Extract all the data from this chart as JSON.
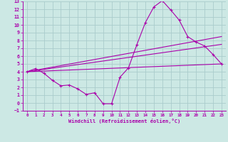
{
  "background_color": "#cce8e4",
  "grid_color": "#aacccc",
  "line_color": "#aa00aa",
  "xlim": [
    -0.5,
    23.5
  ],
  "ylim": [
    -1,
    13
  ],
  "xlabel": "Windchill (Refroidissement éolien,°C)",
  "yticks": [
    -1,
    0,
    1,
    2,
    3,
    4,
    5,
    6,
    7,
    8,
    9,
    10,
    11,
    12,
    13
  ],
  "xticks": [
    0,
    1,
    2,
    3,
    4,
    5,
    6,
    7,
    8,
    9,
    10,
    11,
    12,
    13,
    14,
    15,
    16,
    17,
    18,
    19,
    20,
    21,
    22,
    23
  ],
  "series1_x": [
    0,
    1,
    2,
    3,
    4,
    5,
    6,
    7,
    8,
    9,
    10,
    11,
    12,
    13,
    14,
    15,
    16,
    17,
    18,
    19,
    20,
    21,
    22,
    23
  ],
  "series1_y": [
    4.0,
    4.4,
    3.8,
    2.9,
    2.2,
    2.3,
    1.8,
    1.1,
    1.3,
    -0.1,
    -0.1,
    3.3,
    4.5,
    7.5,
    10.3,
    12.3,
    13.1,
    11.9,
    10.6,
    8.5,
    7.8,
    7.3,
    6.2,
    5.0
  ],
  "series2_x": [
    0,
    23
  ],
  "series2_y": [
    4.0,
    8.5
  ],
  "series3_x": [
    0,
    23
  ],
  "series3_y": [
    4.0,
    7.5
  ],
  "series4_x": [
    0,
    23
  ],
  "series4_y": [
    4.0,
    5.0
  ]
}
